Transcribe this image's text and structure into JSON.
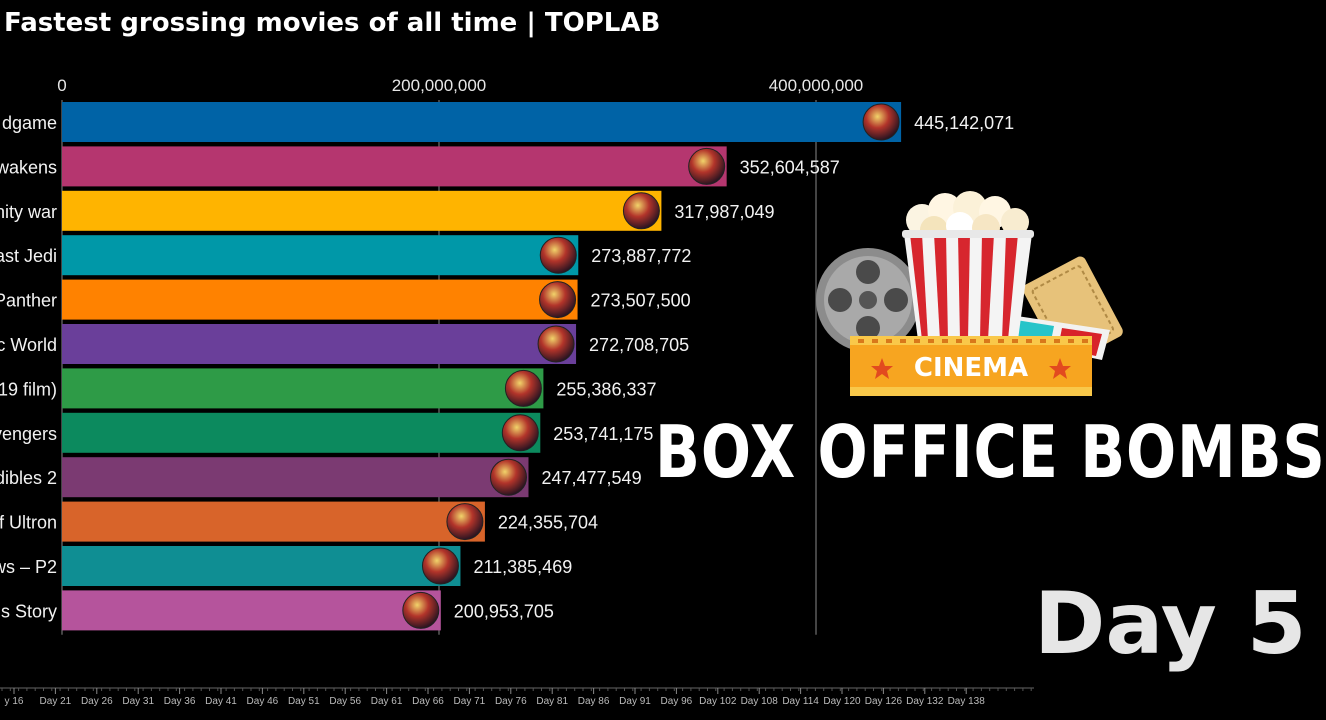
{
  "header": {
    "title": "Fastest grossing movies of all time | TOPLAB"
  },
  "overlay": {
    "headline": "BOX OFFICE BOMBS",
    "day_label": "Day 5",
    "art_label": "CINEMA"
  },
  "chart_data": {
    "type": "bar",
    "orientation": "horizontal",
    "title": "Fastest grossing movies of all time | TOPLAB",
    "xlim": [
      0,
      500000000
    ],
    "x_ticks": [
      {
        "value": 0,
        "label": "0"
      },
      {
        "value": 200000000,
        "label": "200,000,000"
      },
      {
        "value": 400000000,
        "label": "400,000,000"
      }
    ],
    "categories": [
      "dgame",
      "wakens",
      "nity war",
      "ast Jedi",
      "Panther",
      "c World",
      "19 film)",
      "vengers",
      "dibles 2",
      "f Ultron",
      "ws – P2",
      "s Story"
    ],
    "values": [
      445142071,
      352604587,
      317987049,
      273887772,
      273507500,
      272708705,
      255386337,
      253741175,
      247477549,
      224355704,
      211385469,
      200953705
    ],
    "value_labels": [
      "445,142,071",
      "352,604,587",
      "317,987,049",
      "273,887,772",
      "273,507,500",
      "272,708,705",
      "255,386,337",
      "253,741,175",
      "247,477,549",
      "224,355,704",
      "211,385,469",
      "200,953,705"
    ],
    "colors": [
      "#0063a6",
      "#b5366f",
      "#ffb400",
      "#0098a8",
      "#ff8200",
      "#6a3f9a",
      "#2e9b47",
      "#0c8a5e",
      "#7b3a72",
      "#d8642a",
      "#0f8e93",
      "#b5549c"
    ],
    "timeline_ticks": [
      "y 16",
      "Day 21",
      "Day 26",
      "Day 31",
      "Day 36",
      "Day 41",
      "Day 46",
      "Day 51",
      "Day 56",
      "Day 61",
      "Day 66",
      "Day 71",
      "Day 76",
      "Day 81",
      "Day 86",
      "Day 91",
      "Day 96",
      "Day 102",
      "Day 108",
      "Day 114",
      "Day 120",
      "Day 126",
      "Day 132",
      "Day 138"
    ],
    "grid": true
  }
}
